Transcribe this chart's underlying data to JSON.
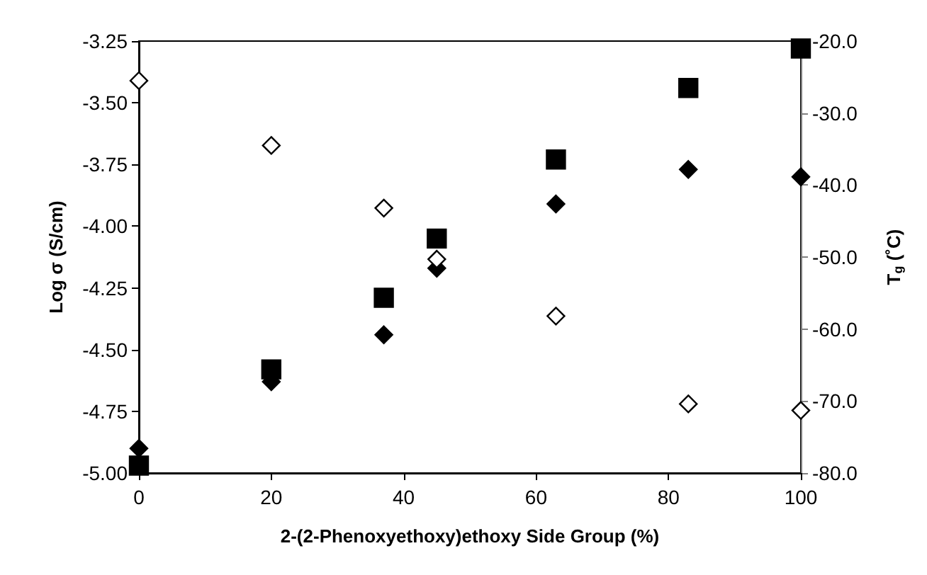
{
  "chart_data": {
    "type": "scatter",
    "xlabel": "2-(2-Phenoxyethoxy)ethoxy Side Group (%)",
    "ylabel": "Log σ (S/cm)",
    "y2label": "T$_{g}$ (˚C)",
    "x": [
      0,
      20,
      37,
      45,
      63,
      83,
      100
    ],
    "xlim": [
      0,
      100
    ],
    "xticks": [
      0,
      20,
      40,
      60,
      80,
      100
    ],
    "ylim": [
      -5,
      -3.25
    ],
    "yticks": [
      {
        "value": -5,
        "label": "-5.00"
      },
      {
        "value": -4.75,
        "label": "-4.75"
      },
      {
        "value": -4.5,
        "label": "-4.50"
      },
      {
        "value": -4.25,
        "label": "-4.25"
      },
      {
        "value": -4,
        "label": "-4.00"
      },
      {
        "value": -3.75,
        "label": "-3.75"
      },
      {
        "value": -3.5,
        "label": "-3.50"
      },
      {
        "value": -3.25,
        "label": "-3.25"
      }
    ],
    "y2lim": [
      -80,
      -20
    ],
    "y2ticks": [
      {
        "value": -80,
        "label": "-80.0"
      },
      {
        "value": -70,
        "label": "-70.0"
      },
      {
        "value": -60,
        "label": "-60.0"
      },
      {
        "value": -50,
        "label": "-50.0"
      },
      {
        "value": -40,
        "label": "-40.0"
      },
      {
        "value": -30,
        "label": "-30.0"
      },
      {
        "value": -20,
        "label": "-20.0"
      }
    ],
    "grid": false,
    "series": [
      {
        "marker": "square",
        "color": "#000000",
        "values": [
          -4.97,
          -4.58,
          -4.29,
          -4.05,
          -3.73,
          -3.44,
          -3.28
        ]
      },
      {
        "marker": "diamond",
        "color": "#000000",
        "values": [
          -4.9,
          -4.63,
          -4.44,
          -4.17,
          -3.91,
          -3.77,
          -3.8
        ]
      },
      {
        "marker": "diamond",
        "color": "#ffffff",
        "axis": "y2",
        "values": [
          -25.5,
          -34.5,
          -43.2,
          -50.3,
          -58.2,
          -70.4,
          -71.3
        ]
      }
    ]
  }
}
